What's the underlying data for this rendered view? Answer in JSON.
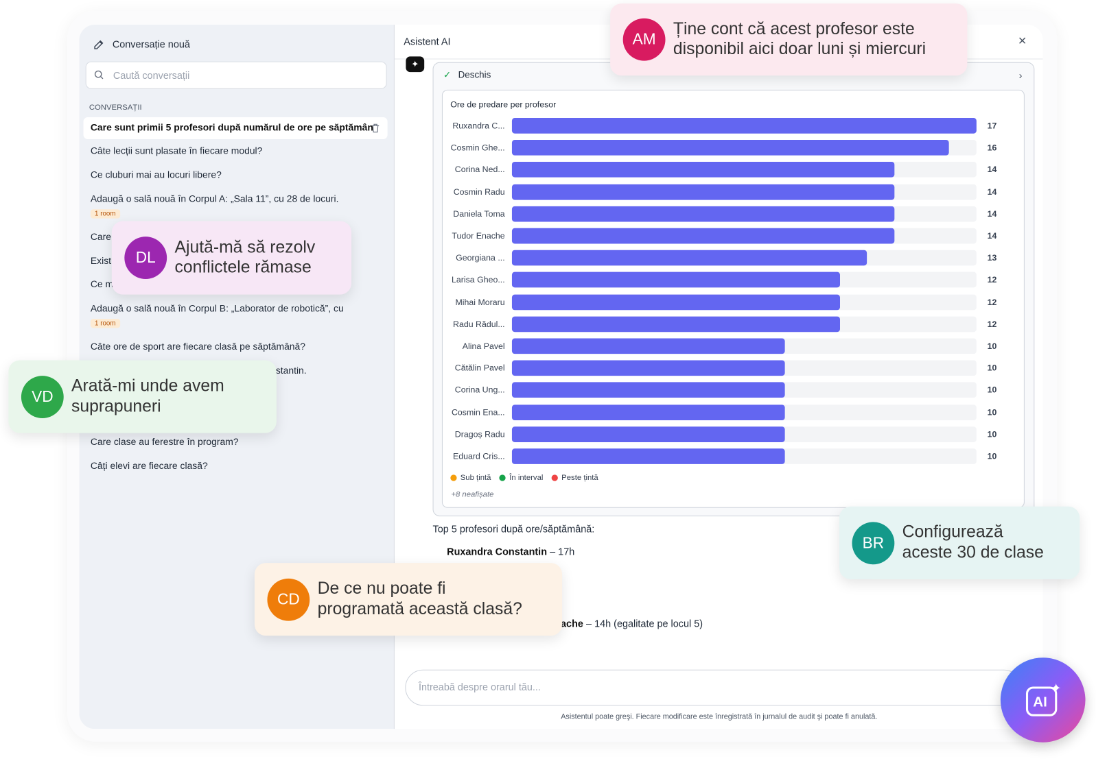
{
  "sidebar": {
    "new_conversation": "Conversație nouă",
    "search_placeholder": "Caută conversații",
    "section_label": "CONVERSAȚII",
    "conversations": [
      {
        "title": "Care sunt primii 5 profesori după numărul de ore pe săptămân"
      },
      {
        "title": "Câte lecții sunt plasate în fiecare modul?"
      },
      {
        "title": "Ce cluburi mai au locuri libere?"
      },
      {
        "title": "Adaugă o sală nouă în Corpul A: „Sala 11”, cu 28 de locuri.",
        "badge": "1 room"
      },
      {
        "title": "Care"
      },
      {
        "title": "Exist"
      },
      {
        "title": "Ce m"
      },
      {
        "title": "Adaugă o sală nouă în Corpul B: „Laborator de robotică”, cu",
        "badge": "1 room"
      },
      {
        "title": "Câte ore de sport are fiecare clasă pe săptămână?"
      },
      {
        "title": "stantin."
      },
      {
        "title": "Care clase au ferestre în program?"
      },
      {
        "title": "Câți elevi are fiecare clasă?"
      }
    ]
  },
  "assistant": {
    "title": "Asistent AI",
    "status": "Deschis",
    "response_intro": "Top 5 profesori după ore/săptămână:",
    "response_items": [
      {
        "name": "Ruxandra Constantin",
        "detail": "– 17h"
      },
      {
        "name": "ache",
        "detail": "– 14h (egalitate pe locul 5)"
      }
    ],
    "input_placeholder": "Întreabă despre orarul tău...",
    "disclaimer": "Asistentul poate greşi. Fiecare modificare este înregistrată în jurnalul de audit şi poate fi anulată."
  },
  "chart_data": {
    "type": "bar",
    "orientation": "horizontal",
    "title": "Ore de predare per profesor",
    "categories": [
      "Ruxandra C...",
      "Cosmin Ghe...",
      "Corina Ned...",
      "Cosmin Radu",
      "Daniela Toma",
      "Tudor Enache",
      "Georgiana ...",
      "Larisa Gheo...",
      "Mihai Moraru",
      "Radu Rădul...",
      "Alina Pavel",
      "Cătălin Pavel",
      "Corina Ung...",
      "Cosmin Ena...",
      "Dragoș Radu",
      "Eduard Cris..."
    ],
    "values": [
      17,
      16,
      14,
      14,
      14,
      14,
      13,
      12,
      12,
      12,
      10,
      10,
      10,
      10,
      10,
      10
    ],
    "color": "#6366f1",
    "xlim": [
      0,
      17
    ],
    "legend": [
      {
        "label": "Sub țintă",
        "color": "#f59e0b"
      },
      {
        "label": "În interval",
        "color": "#16a34a"
      },
      {
        "label": "Peste țintă",
        "color": "#ef4444"
      }
    ],
    "note": "+8 neafișate"
  },
  "bubbles": [
    {
      "initials": "AM",
      "lines": [
        "Ține cont că acest profesor este",
        "disponibil aici doar luni și miercuri"
      ],
      "color": "#d81b60",
      "background": "#fce9ef"
    },
    {
      "initials": "DL",
      "lines": [
        "Ajută-mă să rezolv",
        "conflictele rămase"
      ],
      "color": "#9c27b0",
      "background": "#f7e7f6"
    },
    {
      "initials": "VD",
      "lines": [
        "Arată-mi unde avem",
        "suprapuneri"
      ],
      "color": "#2ea84a",
      "background": "#e9f6eb"
    },
    {
      "initials": "BR",
      "lines": [
        "Configurează",
        "aceste 30 de clase"
      ],
      "color": "#14998a",
      "background": "#e6f4f3"
    },
    {
      "initials": "CD",
      "lines": [
        "De ce nu poate fi",
        "programată această clasă?"
      ],
      "color": "#ef7d0a",
      "background": "#fdf2e6"
    }
  ],
  "ai_button_label": "AI"
}
